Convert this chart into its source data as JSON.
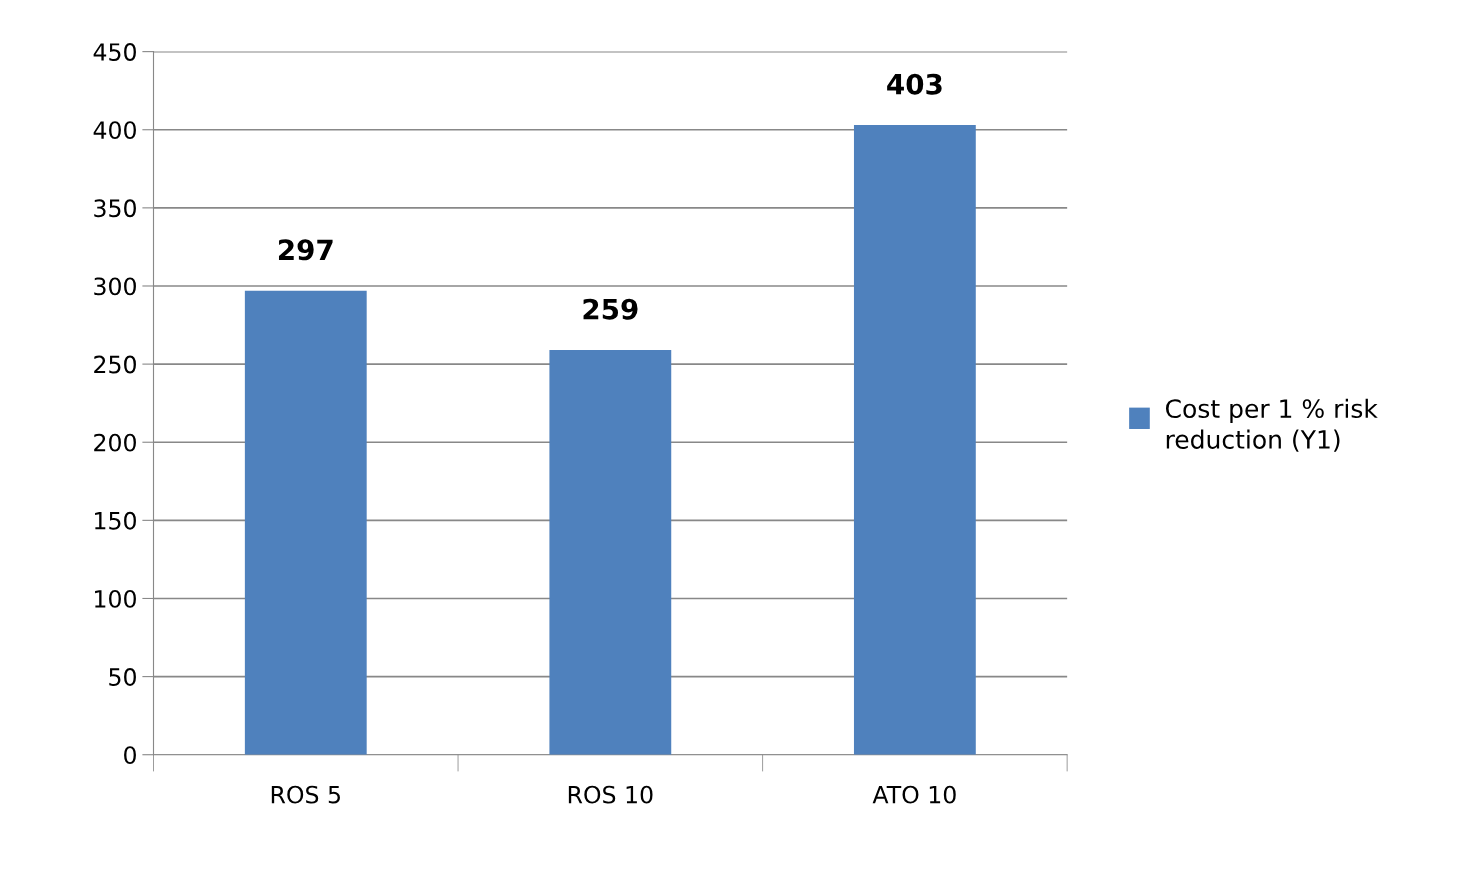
{
  "chart_data": {
    "type": "bar",
    "categories": [
      "ROS 5",
      "ROS 10",
      "ATO 10"
    ],
    "series": [
      {
        "name": "Cost per 1 % risk reduction (Y1)",
        "color": "#4f81bd",
        "values": [
          297,
          259,
          403
        ]
      }
    ],
    "ylim": [
      0,
      450
    ],
    "yticks": [
      0,
      50,
      100,
      150,
      200,
      250,
      300,
      350,
      400,
      450
    ],
    "grid": "y",
    "legend": "right",
    "data_labels": true
  }
}
